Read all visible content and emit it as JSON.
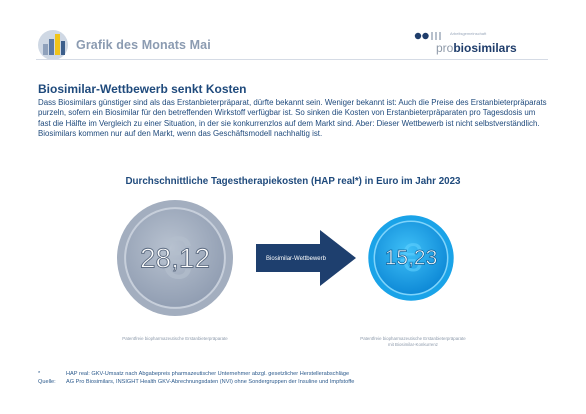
{
  "header": {
    "title": "Grafik des Monats Mai",
    "brand_small": "Arbeitsgemeinschaft",
    "brand_pro": "pro",
    "brand_bio": "biosimilars"
  },
  "intro": {
    "heading": "Biosimilar-Wettbewerb senkt Kosten",
    "text": "Dass Biosimilars günstiger sind als das Erstanbieterpräparat, dürfte bekannt sein. Weniger bekannt ist: Auch die Preise des Erstanbieterpräparats purzeln, sofern ein Biosimilar für den betreffenden Wirkstoff verfügbar ist. So sinken die Kosten von Erstanbieterpräparaten pro Tagesdosis um fast die Hälfte im Vergleich zu einer Situation, in der sie konkurrenzlos auf dem Markt sind. Aber: Dieser Wettbewerb ist nicht selbstverständlich. Biosimilars kommen nur auf den Markt, wenn das Geschäftsmodell nachhaltig ist."
  },
  "chart_data": {
    "type": "bar",
    "title": "Durchschnittliche Tagestherapiekosten (HAP real*) in Euro im Jahr 2023",
    "categories": [
      "Patentfreie biopharmazeutische Erstanbieterpräparate",
      "Patentfreie biopharmazeutische Erstanbieterpräparate mit Biosimilar-Konkurrenz"
    ],
    "values": [
      28.12,
      15.23
    ],
    "value_labels": [
      "28,12",
      "15,23"
    ],
    "caption_lines": [
      [
        "Patentfreie biopharmazeutische Erstanbieterpräparate"
      ],
      [
        "Patentfreie biopharmazeutische Erstanbieterpräparate",
        "mit Biosimilar-Konkurrenz"
      ]
    ],
    "arrow_label": "Biosimilar-Wettbewerb",
    "colors": {
      "coin_left": "#a3aebf",
      "coin_right": "#1aa3e8",
      "arrow": "#1e3f6e"
    }
  },
  "footnotes": [
    {
      "tag": "*",
      "text": "HAP real: GKV-Umsatz nach Abgabepreis pharmazeutischer Unternehmer abzgl. gesetzlicher Herstellerabschläge"
    },
    {
      "tag": "Quelle:",
      "text": "AG Pro Biosimilars, INSIGHT Health GKV-Abrechnungsdaten (NVI) ohne Sondergruppen der Insuline und Impfstoffe"
    }
  ]
}
